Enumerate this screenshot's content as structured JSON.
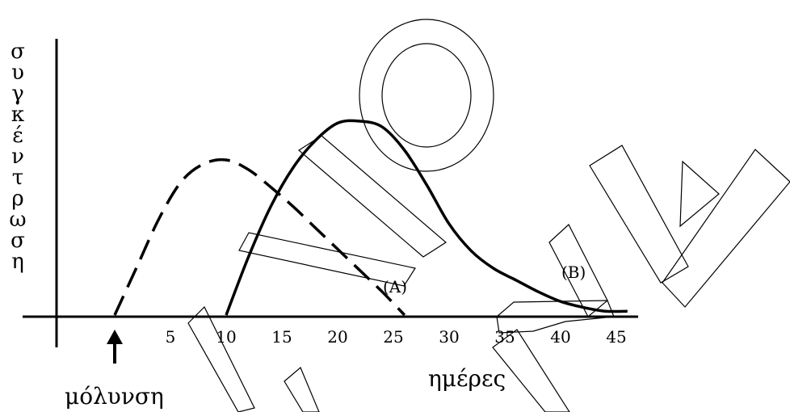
{
  "chart_data": {
    "type": "line",
    "title": "",
    "xlabel": "ημέρες",
    "ylabel": "συγκέντρωση",
    "ylabel_chars": [
      "σ",
      "υ",
      "γ",
      "κ",
      "έ",
      "ν",
      "τ",
      "ρ",
      "ω",
      "σ",
      "η"
    ],
    "x_ticks": [
      5,
      10,
      15,
      20,
      25,
      30,
      35,
      40,
      45
    ],
    "xlim": [
      -10,
      46
    ],
    "ylim": [
      0,
      1
    ],
    "grid": false,
    "annotations": [
      {
        "text": "μόλυνση",
        "x": 0,
        "marker": "arrow-up"
      }
    ],
    "series": [
      {
        "name": "(A)",
        "style": "dashed",
        "x": [
          0,
          2,
          4,
          6,
          8,
          10,
          12,
          14,
          16,
          18,
          20,
          22,
          24,
          26
        ],
        "y": [
          0.0,
          0.25,
          0.5,
          0.69,
          0.78,
          0.8,
          0.75,
          0.66,
          0.56,
          0.45,
          0.34,
          0.23,
          0.12,
          0.0
        ]
      },
      {
        "name": "(B)",
        "style": "solid",
        "x": [
          10,
          12,
          14,
          16,
          18,
          20,
          22,
          24,
          26,
          28,
          30,
          32,
          34,
          36,
          38,
          40,
          42,
          44,
          46
        ],
        "y": [
          0.0,
          0.3,
          0.56,
          0.76,
          0.9,
          0.99,
          1.0,
          0.97,
          0.85,
          0.67,
          0.47,
          0.33,
          0.24,
          0.18,
          0.12,
          0.07,
          0.04,
          0.02,
          0.02
        ]
      }
    ]
  }
}
